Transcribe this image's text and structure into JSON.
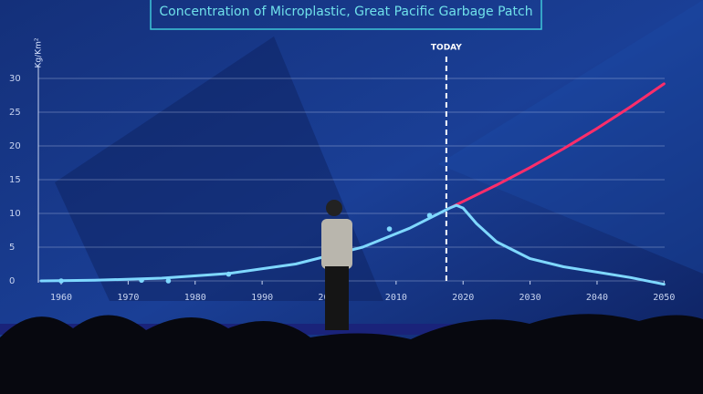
{
  "chart_data": {
    "type": "line",
    "title": "Concentration of Microplastic, Great Pacific Garbage Patch",
    "y_label": "Kg/Km²",
    "annotation": {
      "text": "TODAY",
      "x": 2017.5
    },
    "xlim": [
      1957,
      2052
    ],
    "ylim": [
      -1,
      31
    ],
    "xticks": [
      1960,
      1970,
      1980,
      1990,
      2000,
      2010,
      2020,
      2030,
      2040,
      2050
    ],
    "yticks": [
      0,
      5,
      10,
      15,
      20,
      25,
      30
    ],
    "grid": true,
    "series": [
      {
        "color": "#7fd8ff",
        "x": [
          1957,
          1965,
          1975,
          1985,
          1995,
          2005,
          2012,
          2018
        ],
        "values": [
          0,
          0.1,
          0.4,
          1.1,
          2.5,
          5,
          7.8,
          10.8
        ]
      },
      {
        "color": "#ff2d6a",
        "x": [
          2018,
          2025,
          2030,
          2035,
          2040,
          2045,
          2050
        ],
        "values": [
          10.8,
          14.2,
          16.8,
          19.6,
          22.6,
          25.8,
          29.2
        ]
      },
      {
        "color": "#7fd8ff",
        "x": [
          2018,
          2019,
          2020,
          2022,
          2025,
          2030,
          2035,
          2040,
          2045,
          2050
        ],
        "values": [
          10.8,
          11.2,
          10.8,
          8.5,
          5.8,
          3.3,
          2.1,
          1.3,
          0.5,
          -0.5
        ]
      }
    ],
    "points": {
      "color": "#7fd8ff",
      "x": [
        1960,
        1972,
        1976,
        1985,
        2009,
        2015
      ],
      "values": [
        0,
        0.1,
        0,
        1,
        7.7,
        9.7
      ]
    }
  }
}
